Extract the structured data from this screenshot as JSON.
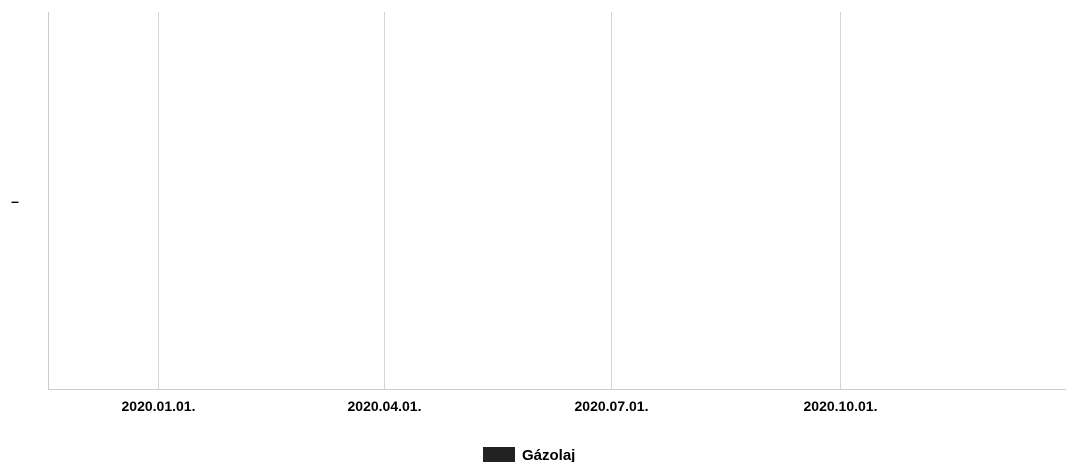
{
  "chart_data": {
    "type": "line",
    "title": "",
    "xlabel": "",
    "ylabel": "",
    "x_axis": {
      "type": "date",
      "ticks": [
        "2020.01.01.",
        "2020.04.01.",
        "2020.07.01.",
        "2020.10.01."
      ],
      "tick_dates": [
        "2020-01-01",
        "2020-04-01",
        "2020-07-01",
        "2020-10-01"
      ],
      "range": [
        "2019-11-18",
        "2020-12-31"
      ]
    },
    "y_axis": {
      "tick_labels": [
        "–"
      ]
    },
    "grid": {
      "vertical": true,
      "horizontal": false
    },
    "legend": {
      "position": "bottom-center"
    },
    "series": [
      {
        "name": "Gázolaj",
        "color": "#222222",
        "values": []
      }
    ]
  }
}
